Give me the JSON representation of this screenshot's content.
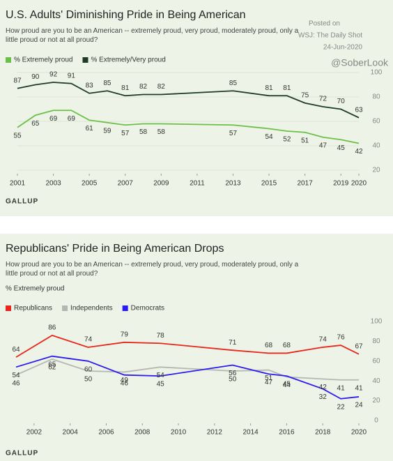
{
  "chart_data": [
    {
      "type": "line",
      "title": "U.S. Adults' Diminishing Pride in Being American",
      "subtitle": "How proud are you to be an American -- extremely proud, very proud, moderately proud, only a little proud or not at all proud?",
      "annotations": [
        "Posted on",
        "WSJ: The Daily Shot",
        "24-Jun-2020",
        "@SoberLook"
      ],
      "source": "GALLUP",
      "x": [
        2001,
        2002,
        2003,
        2004,
        2005,
        2006,
        2007,
        2008,
        2009,
        2013,
        2015,
        2016,
        2017,
        2018,
        2019,
        2020
      ],
      "series": [
        {
          "name": "% Extremely proud",
          "color": "#6cc04a",
          "values": [
            55,
            65,
            69,
            69,
            61,
            59,
            57,
            58,
            58,
            57,
            54,
            52,
            51,
            47,
            45,
            42
          ]
        },
        {
          "name": "% Extremely/Very proud",
          "color": "#1e3b26",
          "values": [
            87,
            90,
            92,
            91,
            83,
            85,
            81,
            82,
            82,
            85,
            81,
            81,
            75,
            72,
            70,
            63
          ]
        }
      ],
      "xlim": [
        2001,
        2020
      ],
      "xticks": [
        2001,
        2003,
        2005,
        2007,
        2009,
        2011,
        2013,
        2015,
        2017,
        2019,
        2020
      ],
      "ylim": [
        20,
        100
      ],
      "yticks": [
        20,
        40,
        60,
        80,
        100
      ],
      "grid": true
    },
    {
      "type": "line",
      "title": "Republicans' Pride in Being American Drops",
      "subtitle": "How proud are you to be an American -- extremely proud, very proud, moderately proud, only a little proud or not at all proud?",
      "y_label": "% Extremely proud",
      "source": "GALLUP",
      "x": [
        2001,
        2003,
        2005,
        2007,
        2009,
        2013,
        2015,
        2016,
        2018,
        2019,
        2020
      ],
      "series": [
        {
          "name": "Republicans",
          "color": "#e8261c",
          "values": [
            64,
            86,
            74,
            79,
            78,
            71,
            68,
            68,
            74,
            76,
            67
          ]
        },
        {
          "name": "Independents",
          "color": "#b5b8b2",
          "values": [
            46,
            62,
            50,
            49,
            54,
            50,
            51,
            44,
            42,
            41,
            41
          ]
        },
        {
          "name": "Democrats",
          "color": "#2c1bf0",
          "values": [
            54,
            65,
            60,
            46,
            45,
            56,
            47,
            45,
            32,
            22,
            24
          ]
        }
      ],
      "xlim": [
        2001,
        2020
      ],
      "xticks": [
        2002,
        2004,
        2006,
        2008,
        2010,
        2012,
        2014,
        2016,
        2018,
        2020
      ],
      "ylim": [
        0,
        100
      ],
      "yticks": [
        0,
        20,
        40,
        60,
        80,
        100
      ],
      "grid": false
    }
  ]
}
